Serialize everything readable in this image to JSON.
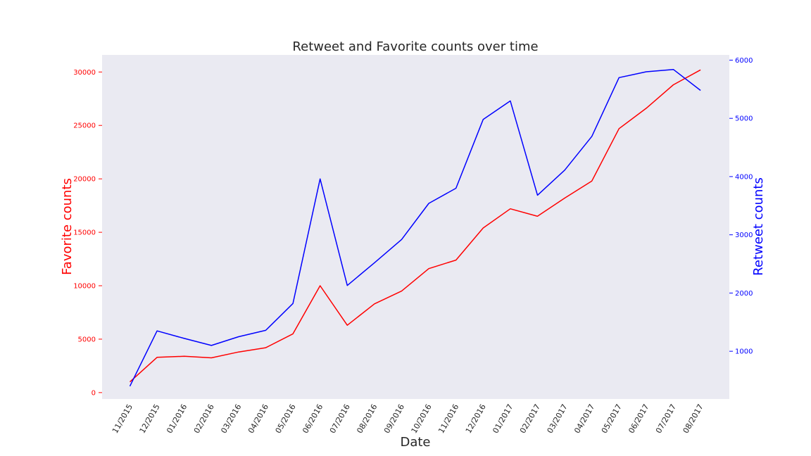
{
  "chart_data": {
    "type": "line",
    "title": "Retweet and Favorite counts over time",
    "xlabel": "Date",
    "ylabel_left": "Favorite counts",
    "ylabel_right": "Retweet counts",
    "categories": [
      "11/2015",
      "12/2015",
      "01/2016",
      "02/2016",
      "03/2016",
      "04/2016",
      "05/2016",
      "06/2016",
      "07/2016",
      "08/2016",
      "09/2016",
      "10/2016",
      "11/2016",
      "12/2016",
      "01/2017",
      "02/2017",
      "03/2017",
      "04/2017",
      "05/2017",
      "06/2017",
      "07/2017",
      "08/2017"
    ],
    "series": [
      {
        "name": "Favorite counts",
        "axis": "left",
        "color": "#ff0000",
        "values": [
          1000,
          3300,
          3400,
          3250,
          3800,
          4200,
          5500,
          10000,
          6300,
          8300,
          9500,
          11600,
          12400,
          15400,
          17200,
          16500,
          18200,
          19800,
          24700,
          26600,
          28800,
          30200
        ]
      },
      {
        "name": "Retweet counts",
        "axis": "right",
        "color": "#0000ff",
        "values": [
          400,
          1350,
          1220,
          1100,
          1250,
          1360,
          1820,
          3960,
          2130,
          2520,
          2920,
          3540,
          3800,
          4980,
          5300,
          3680,
          4110,
          4690,
          5700,
          5800,
          5840,
          5480
        ]
      }
    ],
    "ylim_left": [
      -600,
      31600
    ],
    "yticks_left": [
      0,
      5000,
      10000,
      15000,
      20000,
      25000,
      30000
    ],
    "ylim_right": [
      180,
      6090
    ],
    "yticks_right": [
      1000,
      2000,
      3000,
      4000,
      5000,
      6000
    ],
    "grid": false,
    "plot_background": "#eaeaf2",
    "left_axis_color": "#ff0000",
    "right_axis_color": "#0000ff"
  }
}
